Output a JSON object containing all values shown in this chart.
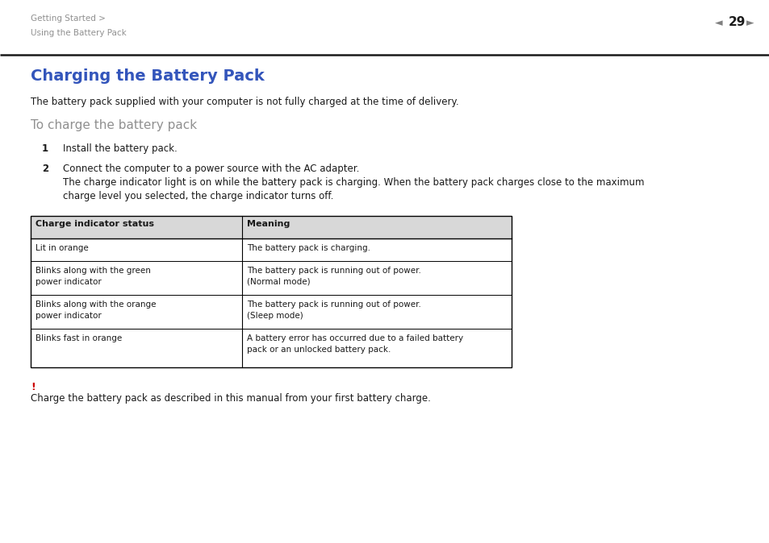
{
  "bg_color": "#ffffff",
  "header_breadcrumb_line1": "Getting Started >",
  "header_breadcrumb_line2": "Using the Battery Pack",
  "header_breadcrumb_color": "#909090",
  "header_line_color": "#000000",
  "title": "Charging the Battery Pack",
  "title_color": "#3355bb",
  "intro": "The battery pack supplied with your computer is not fully charged at the time of delivery.",
  "subheading": "To charge the battery pack",
  "subheading_color": "#909090",
  "step1_num": "1",
  "step1_text": "Install the battery pack.",
  "step2_num": "2",
  "step2_line1": "Connect the computer to a power source with the AC adapter.",
  "step2_line2": "The charge indicator light is on while the battery pack is charging. When the battery pack charges close to the maximum",
  "step2_line3": "charge level you selected, the charge indicator turns off.",
  "table_header_col1": "Charge indicator status",
  "table_header_col2": "Meaning",
  "table_rows": [
    [
      "Lit in orange",
      "The battery pack is charging."
    ],
    [
      "Blinks along with the green\npower indicator",
      "The battery pack is running out of power.\n(Normal mode)"
    ],
    [
      "Blinks along with the orange\npower indicator",
      "The battery pack is running out of power.\n(Sleep mode)"
    ],
    [
      "Blinks fast in orange",
      "A battery error has occurred due to a failed battery\npack or an unlocked battery pack."
    ]
  ],
  "warning_mark": "!",
  "warning_mark_color": "#cc0000",
  "warning_text": "Charge the battery pack as described in this manual from your first battery charge.",
  "table_border_color": "#000000",
  "table_header_bg": "#d8d8d8"
}
